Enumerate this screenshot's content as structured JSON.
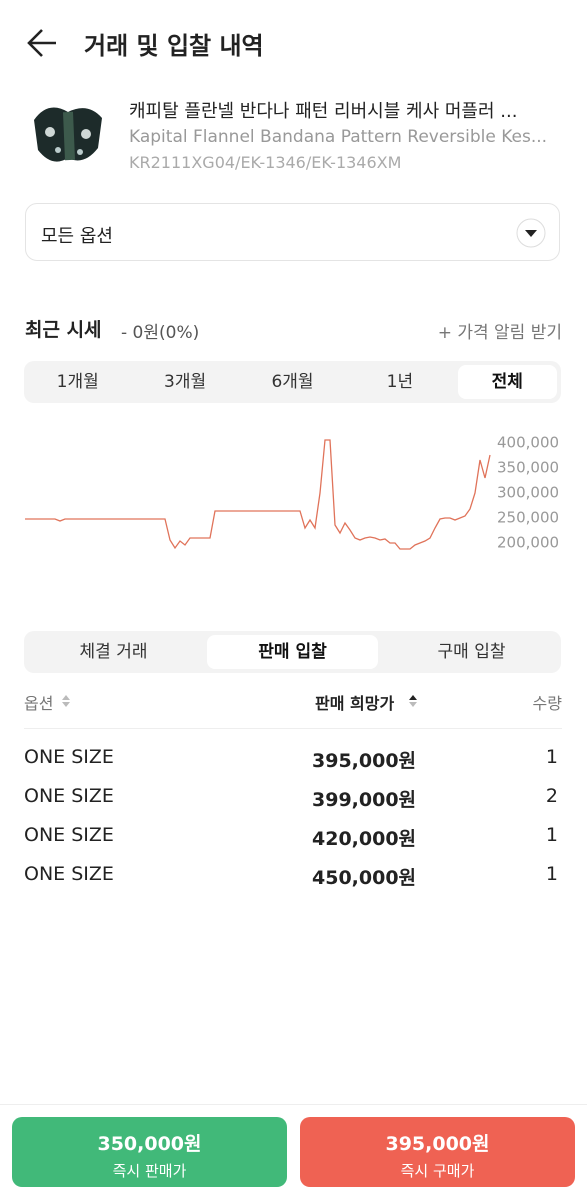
{
  "header": {
    "title": "거래 및 입찰 내역"
  },
  "product": {
    "name_ko": "캐피탈 플란넬 반다나 패턴 리버시블 케사 머플러 ...",
    "name_en": "Kapital Flannel Bandana Pattern Reversible Kes...",
    "code": "KR2111XG04/EK-1346/EK-1346XM"
  },
  "option_select": "모든 옵션",
  "price_summary": {
    "label": "최근 시세",
    "change": "- 0원(0%)",
    "alert": "+ 가격 알림 받기"
  },
  "period_tabs": {
    "items": [
      "1개월",
      "3개월",
      "6개월",
      "1년",
      "전체"
    ],
    "active": 4
  },
  "chart_data": {
    "type": "line",
    "color": "#e0735a",
    "ylim": [
      185000,
      415000
    ],
    "yticks": [
      {
        "value": 200000,
        "label": "200,000"
      },
      {
        "value": 250000,
        "label": "250,000"
      },
      {
        "value": 300000,
        "label": "300,000"
      },
      {
        "value": 350000,
        "label": "350,000"
      },
      {
        "value": 400000,
        "label": "400,000"
      }
    ],
    "values": [
      248000,
      248000,
      248000,
      248000,
      248000,
      248000,
      248000,
      244000,
      248000,
      248000,
      248000,
      248000,
      248000,
      248000,
      248000,
      248000,
      248000,
      248000,
      248000,
      248000,
      248000,
      248000,
      248000,
      248000,
      248000,
      248000,
      248000,
      248000,
      248000,
      206000,
      190000,
      204000,
      196000,
      210000,
      210000,
      210000,
      210000,
      210000,
      264000,
      264000,
      264000,
      264000,
      264000,
      264000,
      264000,
      264000,
      264000,
      264000,
      264000,
      264000,
      264000,
      264000,
      264000,
      264000,
      264000,
      264000,
      230000,
      246000,
      230000,
      300000,
      406000,
      406000,
      236000,
      220000,
      240000,
      226000,
      210000,
      206000,
      210000,
      212000,
      210000,
      206000,
      208000,
      200000,
      200000,
      188000,
      188000,
      188000,
      196000,
      200000,
      204000,
      210000,
      230000,
      248000,
      250000,
      250000,
      246000,
      250000,
      254000,
      268000,
      300000,
      366000,
      330000,
      376000
    ]
  },
  "trade_tabs": {
    "items": [
      "체결 거래",
      "판매 입찰",
      "구매 입찰"
    ],
    "active": 1
  },
  "table": {
    "headers": [
      "옵션",
      "판매 희망가",
      "수량"
    ],
    "rows": [
      [
        "ONE SIZE",
        "395,000원",
        "1"
      ],
      [
        "ONE SIZE",
        "399,000원",
        "2"
      ],
      [
        "ONE SIZE",
        "420,000원",
        "1"
      ],
      [
        "ONE SIZE",
        "450,000원",
        "1"
      ]
    ]
  },
  "actions": {
    "sell": {
      "price": "350,000원",
      "label": "즉시 판매가"
    },
    "buy": {
      "price": "395,000원",
      "label": "즉시 구매가"
    }
  }
}
